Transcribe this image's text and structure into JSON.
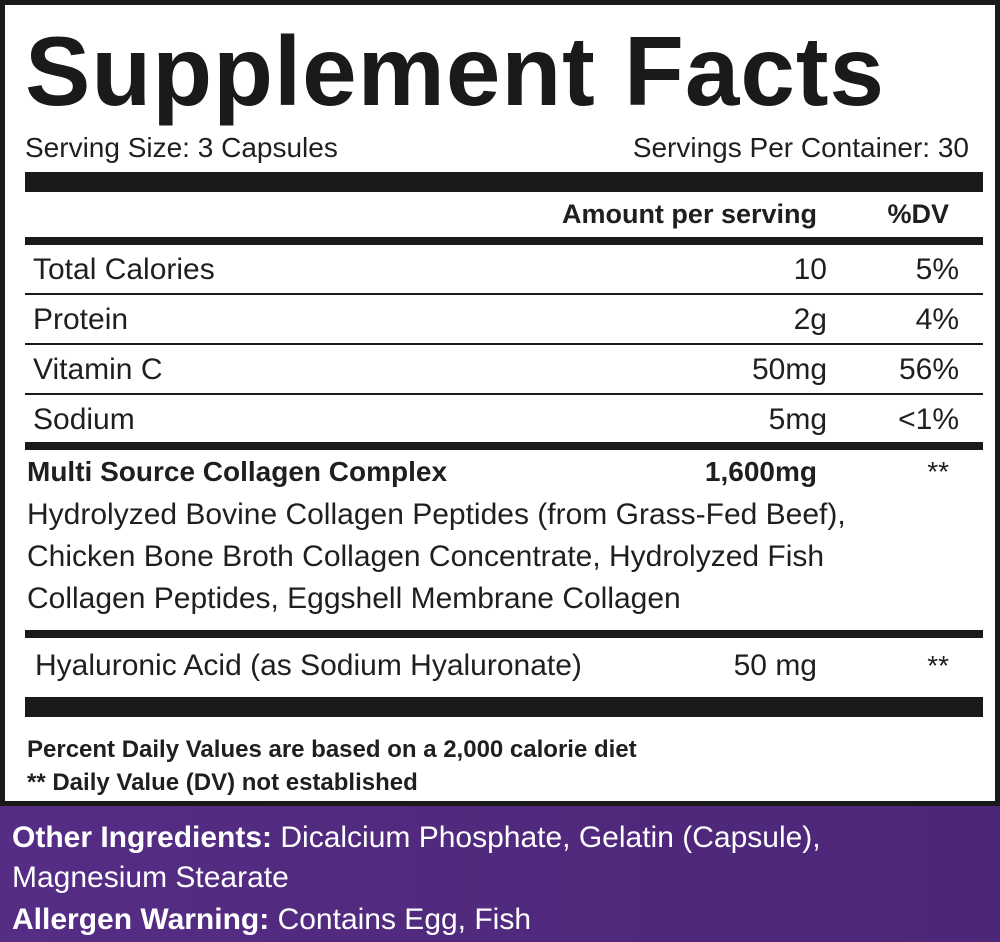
{
  "label": {
    "title": "Supplement Facts",
    "serving_size": "Serving Size: 3 Capsules",
    "servings_per_container": "Servings Per Container: 30",
    "header_amount": "Amount per serving",
    "header_dv": "%DV"
  },
  "nutrients": [
    {
      "name": "Total Calories",
      "amount": "10",
      "dv": "5%"
    },
    {
      "name": "Protein",
      "amount": "2g",
      "dv": "4%"
    },
    {
      "name": "Vitamin C",
      "amount": "50mg",
      "dv": "56%"
    },
    {
      "name": "Sodium",
      "amount": "5mg",
      "dv": "<1%"
    }
  ],
  "blend": {
    "name": "Multi Source Collagen Complex",
    "amount": "1,600mg",
    "dv": "**",
    "line1": "Hydrolyzed Bovine Collagen Peptides (from Grass-Fed Beef),",
    "line2": "Chicken Bone Broth Collagen Concentrate, Hydrolyzed Fish",
    "line3": "Collagen Peptides, Eggshell Membrane Collagen"
  },
  "hyaluronic": {
    "name": "Hyaluronic Acid (as Sodium Hyaluronate)",
    "amount": "50 mg",
    "dv": "**"
  },
  "footnotes": {
    "line1": "Percent Daily Values are based on a 2,000 calorie diet",
    "line2": "** Daily Value (DV) not established"
  },
  "other": {
    "ingredients_label": "Other Ingredients:",
    "ingredients_line1": " Dicalcium Phosphate, Gelatin (Capsule),",
    "ingredients_line2": "Magnesium Stearate",
    "allergen_label": "Allergen Warning:",
    "allergen_text": " Contains Egg, Fish"
  },
  "colors": {
    "border": "#1a1a1a",
    "purple": "#4f2a7a",
    "text": "#1f1f1f"
  }
}
